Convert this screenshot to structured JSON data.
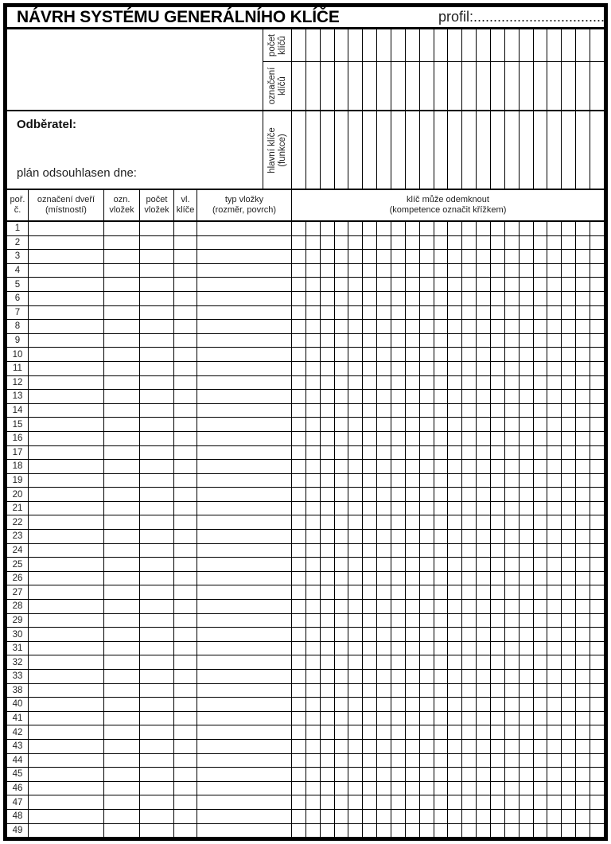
{
  "title": "NÁVRH SYSTÉMU GENERÁLNÍHO KLÍČE",
  "profil": {
    "label": "profil:",
    "dots": "............................................................"
  },
  "colors": {
    "paper": "#ffffff",
    "line": "#000000",
    "text": "#1a1a1a"
  },
  "upper": {
    "rows": [
      {
        "name": "pocet-klicu",
        "label_lines": [
          "počet",
          "klíčů"
        ]
      },
      {
        "name": "oznaceni-klicu",
        "label_lines": [
          "označení",
          "klíčů"
        ]
      },
      {
        "name": "hlavni-klice",
        "label_lines": [
          "hlavní klíče",
          "(funkce)"
        ]
      }
    ],
    "odberatel_label": "Odběratel:",
    "plan_label": "plán odsouhlasen dne:"
  },
  "table": {
    "key_column_count": 22,
    "headers": [
      {
        "lines": [
          "poř.",
          "č."
        ]
      },
      {
        "lines": [
          "označení dveří",
          "(místností)"
        ]
      },
      {
        "lines": [
          "ozn.",
          "vložek"
        ]
      },
      {
        "lines": [
          "počet",
          "vložek"
        ]
      },
      {
        "lines": [
          "vl.",
          "klíče"
        ]
      },
      {
        "lines": [
          "typ vložky",
          "(rozměr, povrch)"
        ]
      },
      {
        "lines": [
          "klíč může odemknout",
          "(kompetence označit křížkem)"
        ]
      }
    ],
    "row_numbers": [
      1,
      2,
      3,
      4,
      5,
      6,
      7,
      8,
      9,
      10,
      11,
      12,
      13,
      14,
      15,
      16,
      17,
      18,
      19,
      20,
      21,
      22,
      23,
      24,
      25,
      26,
      27,
      28,
      29,
      30,
      31,
      32,
      33,
      38,
      40,
      41,
      42,
      43,
      44,
      45,
      46,
      47,
      48,
      49
    ]
  }
}
